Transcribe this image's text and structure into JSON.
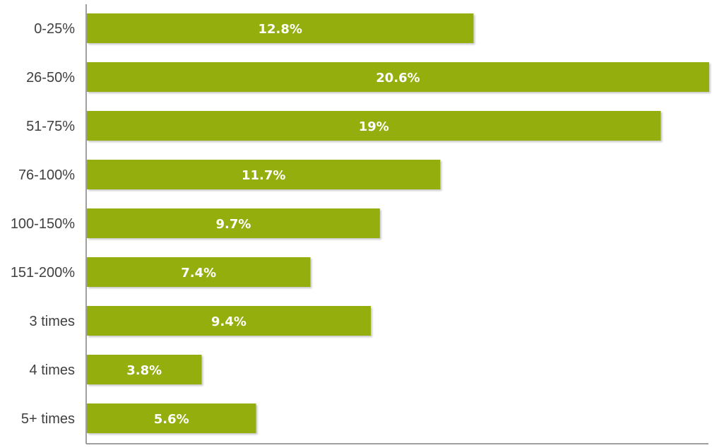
{
  "chart_data": {
    "type": "bar",
    "orientation": "horizontal",
    "categories": [
      "0-25%",
      "26-50%",
      "51-75%",
      "76-100%",
      "100-150%",
      "151-200%",
      "3 times",
      "4 times",
      "5+ times"
    ],
    "values": [
      12.8,
      20.6,
      19,
      11.7,
      9.7,
      7.4,
      9.4,
      3.8,
      5.6
    ],
    "value_labels": [
      "12.8%",
      "20.6%",
      "19%",
      "11.7%",
      "9.7%",
      "7.4%",
      "9.4%",
      "3.8%",
      "5.6%"
    ],
    "title": "",
    "xlabel": "",
    "ylabel": "",
    "xlim": [
      0,
      20.6
    ],
    "grid": false,
    "legend": "none",
    "colors": {
      "bar": "#93ae0a",
      "bar_shadow": "#c8c8c8",
      "axis": "#808080",
      "category_text": "#404040",
      "value_text": "#ffffff"
    }
  }
}
